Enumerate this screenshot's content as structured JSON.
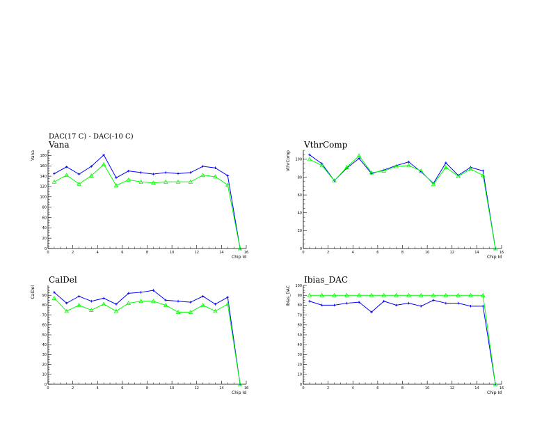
{
  "page": {
    "supertitle": "DAC(17 C) - DAC(-10 C)"
  },
  "chart_data": [
    {
      "type": "line",
      "title": "Vana",
      "xlabel": "Chip Id",
      "ylabel": "Vana",
      "xlim": [
        0,
        16
      ],
      "ylim": [
        0,
        190
      ],
      "xticks": [
        0,
        2,
        4,
        6,
        8,
        10,
        12,
        14,
        16
      ],
      "yticks": [
        0,
        20,
        40,
        60,
        80,
        100,
        120,
        140,
        160,
        180
      ],
      "x": [
        0.5,
        1.5,
        2.5,
        3.5,
        4.5,
        5.5,
        6.5,
        7.5,
        8.5,
        9.5,
        10.5,
        11.5,
        12.5,
        13.5,
        14.5,
        15.5
      ],
      "series": [
        {
          "color": "#0000ff",
          "marker": "cross",
          "values": [
            145,
            158,
            144,
            159,
            181,
            137,
            150,
            147,
            144,
            147,
            145,
            147,
            159,
            156,
            141,
            0
          ]
        },
        {
          "color": "#00ff00",
          "marker": "triangle",
          "values": [
            129,
            142,
            125,
            141,
            163,
            122,
            133,
            129,
            127,
            129,
            129,
            129,
            142,
            139,
            123,
            0
          ]
        }
      ]
    },
    {
      "type": "line",
      "title": "VthrComp",
      "xlabel": "Chip Id",
      "ylabel": "VthrComp",
      "xlim": [
        0,
        16
      ],
      "ylim": [
        0,
        110
      ],
      "xticks": [
        0,
        2,
        4,
        6,
        8,
        10,
        12,
        14,
        16
      ],
      "yticks": [
        0,
        20,
        40,
        60,
        80,
        100
      ],
      "x": [
        0.5,
        1.5,
        2.5,
        3.5,
        4.5,
        5.5,
        6.5,
        7.5,
        8.5,
        9.5,
        10.5,
        11.5,
        12.5,
        13.5,
        14.5,
        15.5
      ],
      "series": [
        {
          "color": "#0000ff",
          "marker": "cross",
          "values": [
            105,
            95,
            76,
            90,
            101,
            84,
            88,
            93,
            97,
            86,
            73,
            96,
            82,
            91,
            87,
            0
          ]
        },
        {
          "color": "#00ff00",
          "marker": "triangle",
          "values": [
            100,
            93,
            76,
            91,
            104,
            85,
            87,
            92,
            93,
            87,
            72,
            91,
            81,
            89,
            82,
            0
          ]
        }
      ]
    },
    {
      "type": "line",
      "title": "CalDel",
      "xlabel": "Chip Id",
      "ylabel": "CalDel",
      "xlim": [
        0,
        16
      ],
      "ylim": [
        0,
        100
      ],
      "xticks": [
        0,
        2,
        4,
        6,
        8,
        10,
        12,
        14,
        16
      ],
      "yticks": [
        0,
        10,
        20,
        30,
        40,
        50,
        60,
        70,
        80,
        90
      ],
      "x": [
        0.5,
        1.5,
        2.5,
        3.5,
        4.5,
        5.5,
        6.5,
        7.5,
        8.5,
        9.5,
        10.5,
        11.5,
        12.5,
        13.5,
        14.5,
        15.5
      ],
      "series": [
        {
          "color": "#0000ff",
          "marker": "cross",
          "values": [
            93,
            82,
            89,
            84,
            87,
            81,
            92,
            93,
            95,
            85,
            84,
            83,
            89,
            81,
            88,
            0
          ]
        },
        {
          "color": "#00ff00",
          "marker": "triangle",
          "values": [
            87,
            74,
            80,
            75,
            81,
            74,
            82,
            84,
            84,
            80,
            73,
            73,
            80,
            74,
            81,
            0
          ]
        }
      ]
    },
    {
      "type": "line",
      "title": "Ibias_DAC",
      "xlabel": "Chip Id",
      "ylabel": "Ibias_DAC",
      "xlim": [
        0,
        16
      ],
      "ylim": [
        0,
        100
      ],
      "xticks": [
        0,
        2,
        4,
        6,
        8,
        10,
        12,
        14,
        16
      ],
      "yticks": [
        0,
        10,
        20,
        30,
        40,
        50,
        60,
        70,
        80,
        90,
        100
      ],
      "x": [
        0.5,
        1.5,
        2.5,
        3.5,
        4.5,
        5.5,
        6.5,
        7.5,
        8.5,
        9.5,
        10.5,
        11.5,
        12.5,
        13.5,
        14.5,
        15.5
      ],
      "series": [
        {
          "color": "#0000ff",
          "marker": "cross",
          "values": [
            84,
            80,
            80,
            82,
            83,
            73,
            84,
            80,
            82,
            79,
            85,
            82,
            82,
            79,
            79,
            0
          ]
        },
        {
          "color": "#00ff00",
          "marker": "triangle",
          "values": [
            90,
            90,
            90,
            90,
            90,
            90,
            90,
            90,
            90,
            90,
            90,
            90,
            90,
            90,
            90,
            0
          ]
        }
      ]
    }
  ]
}
